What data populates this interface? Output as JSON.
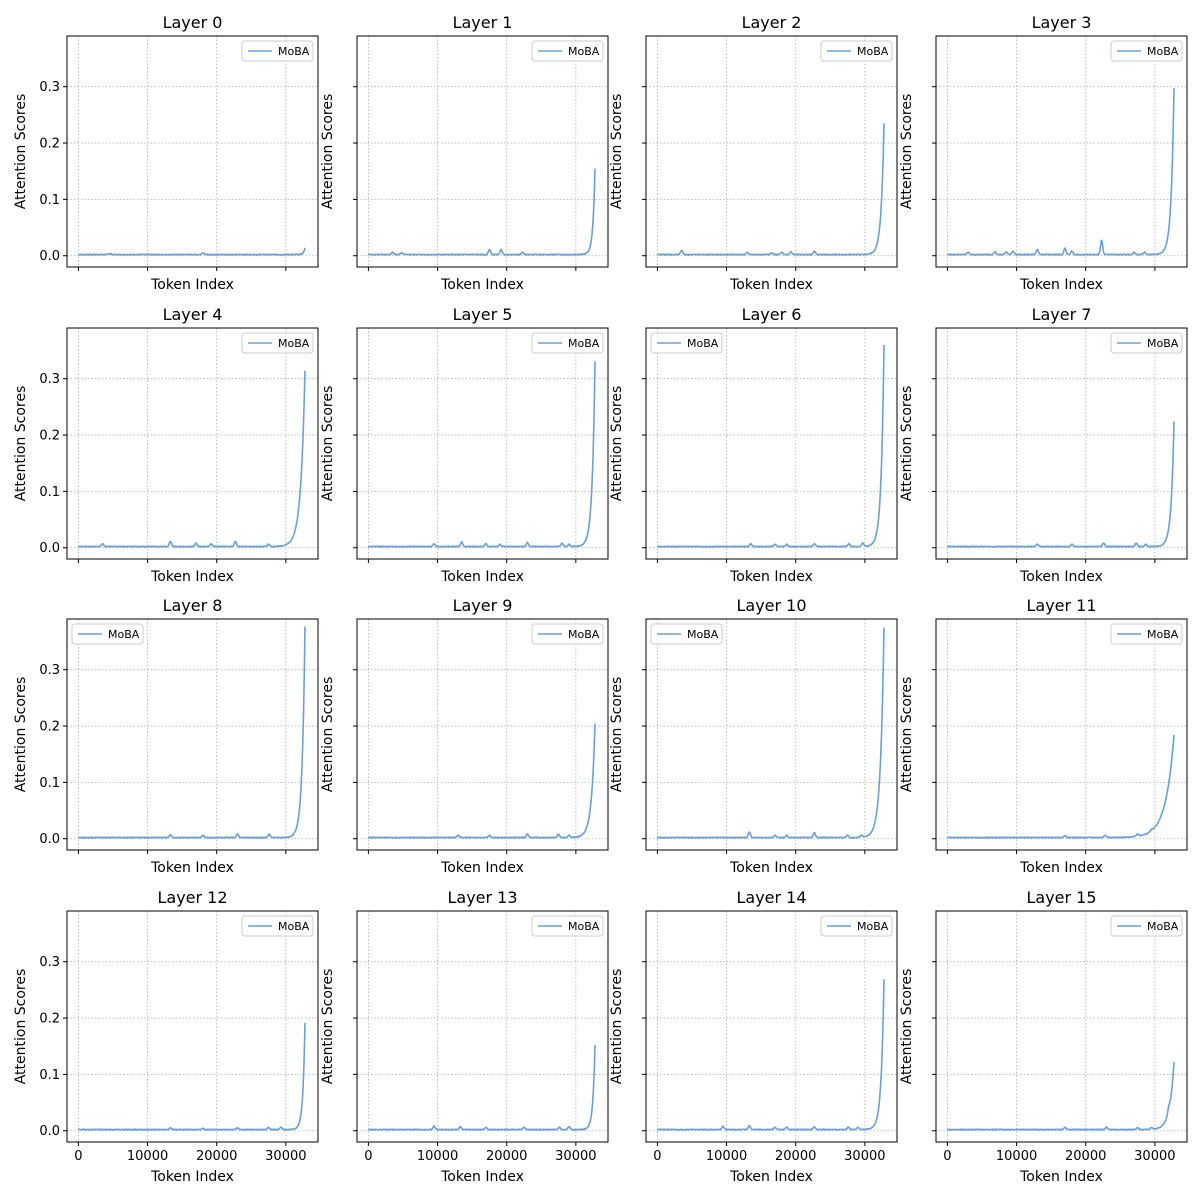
{
  "chart_data": {
    "type": "line",
    "layout": "4x4 grid, shared x and y axes",
    "xlabel": "Token Index",
    "ylabel": "Attention Scores",
    "xlim": [
      -1650,
      34650
    ],
    "ylim": [
      -0.02,
      0.39
    ],
    "xticks": [
      0,
      10000,
      20000,
      30000
    ],
    "xtick_labels": [
      "0",
      "10000",
      "20000",
      "30000"
    ],
    "yticks": [
      0.0,
      0.1,
      0.2,
      0.3
    ],
    "ytick_labels": [
      "0.0",
      "0.1",
      "0.2",
      "0.3"
    ],
    "grid": true,
    "line_color": "#6a9fd8",
    "series_name": "MoBA",
    "token_count": 32768,
    "panels": [
      {
        "title": "Layer 0",
        "legend_loc": "upper right",
        "peak": 0.012,
        "ramp": 200,
        "bumps": [
          [
            4500,
            0.002
          ],
          [
            18000,
            0.003
          ]
        ]
      },
      {
        "title": "Layer 1",
        "legend_loc": "upper right",
        "peak": 0.152,
        "ramp": 300,
        "bumps": [
          [
            3500,
            0.004
          ],
          [
            4800,
            0.003
          ],
          [
            17500,
            0.009
          ],
          [
            19200,
            0.009
          ],
          [
            22300,
            0.004
          ]
        ]
      },
      {
        "title": "Layer 2",
        "legend_loc": "upper right",
        "peak": 0.233,
        "ramp": 400,
        "bumps": [
          [
            3500,
            0.008
          ],
          [
            13000,
            0.004
          ],
          [
            16500,
            0.003
          ],
          [
            18000,
            0.004
          ],
          [
            19300,
            0.005
          ],
          [
            22700,
            0.006
          ]
        ]
      },
      {
        "title": "Layer 3",
        "legend_loc": "upper right",
        "peak": 0.295,
        "ramp": 400,
        "bumps": [
          [
            3000,
            0.004
          ],
          [
            6900,
            0.005
          ],
          [
            8500,
            0.005
          ],
          [
            9500,
            0.006
          ],
          [
            13000,
            0.009
          ],
          [
            17000,
            0.011
          ],
          [
            18000,
            0.006
          ],
          [
            22300,
            0.025
          ],
          [
            27000,
            0.004
          ],
          [
            28500,
            0.004
          ]
        ]
      },
      {
        "title": "Layer 4",
        "legend_loc": "upper right",
        "peak": 0.312,
        "ramp": 600,
        "bumps": [
          [
            3500,
            0.005
          ],
          [
            13300,
            0.009
          ],
          [
            17000,
            0.006
          ],
          [
            19200,
            0.005
          ],
          [
            22700,
            0.009
          ],
          [
            27500,
            0.004
          ]
        ]
      },
      {
        "title": "Layer 5",
        "legend_loc": "upper right",
        "peak": 0.328,
        "ramp": 400,
        "bumps": [
          [
            9500,
            0.005
          ],
          [
            13500,
            0.008
          ],
          [
            17000,
            0.005
          ],
          [
            19000,
            0.004
          ],
          [
            23000,
            0.007
          ],
          [
            28000,
            0.006
          ],
          [
            29000,
            0.004
          ]
        ]
      },
      {
        "title": "Layer 6",
        "legend_loc": "upper left",
        "peak": 0.358,
        "ramp": 400,
        "bumps": [
          [
            13500,
            0.005
          ],
          [
            17000,
            0.004
          ],
          [
            18700,
            0.004
          ],
          [
            22700,
            0.005
          ],
          [
            27700,
            0.005
          ],
          [
            29700,
            0.006
          ]
        ]
      },
      {
        "title": "Layer 7",
        "legend_loc": "upper right",
        "peak": 0.222,
        "ramp": 400,
        "bumps": [
          [
            13000,
            0.004
          ],
          [
            18000,
            0.004
          ],
          [
            22600,
            0.006
          ],
          [
            27300,
            0.006
          ],
          [
            28700,
            0.004
          ]
        ]
      },
      {
        "title": "Layer 8",
        "legend_loc": "upper left",
        "peak": 0.375,
        "ramp": 400,
        "bumps": [
          [
            13300,
            0.005
          ],
          [
            18000,
            0.004
          ],
          [
            23000,
            0.006
          ],
          [
            27600,
            0.006
          ]
        ]
      },
      {
        "title": "Layer 9",
        "legend_loc": "upper right",
        "peak": 0.202,
        "ramp": 500,
        "bumps": [
          [
            13000,
            0.004
          ],
          [
            17500,
            0.004
          ],
          [
            23000,
            0.006
          ],
          [
            27500,
            0.006
          ],
          [
            29000,
            0.004
          ]
        ]
      },
      {
        "title": "Layer 10",
        "legend_loc": "upper left",
        "peak": 0.373,
        "ramp": 500,
        "bumps": [
          [
            13300,
            0.01
          ],
          [
            17000,
            0.004
          ],
          [
            18700,
            0.004
          ],
          [
            22700,
            0.009
          ],
          [
            27500,
            0.004
          ],
          [
            29500,
            0.004
          ]
        ]
      },
      {
        "title": "Layer 11",
        "legend_loc": "upper right",
        "peak": 0.182,
        "ramp": 1200,
        "bumps": [
          [
            17000,
            0.003
          ],
          [
            22800,
            0.004
          ],
          [
            27500,
            0.004
          ],
          [
            29500,
            0.003
          ]
        ]
      },
      {
        "title": "Layer 12",
        "legend_loc": "upper right",
        "peak": 0.19,
        "ramp": 300,
        "bumps": [
          [
            13300,
            0.003
          ],
          [
            18000,
            0.002
          ],
          [
            23000,
            0.003
          ],
          [
            27500,
            0.004
          ],
          [
            29300,
            0.004
          ]
        ]
      },
      {
        "title": "Layer 13",
        "legend_loc": "upper right",
        "peak": 0.15,
        "ramp": 300,
        "bumps": [
          [
            9500,
            0.006
          ],
          [
            13300,
            0.005
          ],
          [
            17000,
            0.004
          ],
          [
            22500,
            0.004
          ],
          [
            27600,
            0.004
          ],
          [
            29000,
            0.005
          ]
        ]
      },
      {
        "title": "Layer 14",
        "legend_loc": "upper right",
        "peak": 0.266,
        "ramp": 400,
        "bumps": [
          [
            9500,
            0.006
          ],
          [
            13300,
            0.007
          ],
          [
            17000,
            0.004
          ],
          [
            18700,
            0.004
          ],
          [
            22700,
            0.005
          ],
          [
            27600,
            0.004
          ],
          [
            29000,
            0.004
          ]
        ]
      },
      {
        "title": "Layer 15",
        "legend_loc": "upper right",
        "peak": 0.12,
        "ramp": 600,
        "bumps": [
          [
            17000,
            0.004
          ],
          [
            23000,
            0.004
          ],
          [
            27500,
            0.003
          ],
          [
            29500,
            0.003
          ],
          [
            32000,
            0.008
          ]
        ]
      }
    ]
  }
}
